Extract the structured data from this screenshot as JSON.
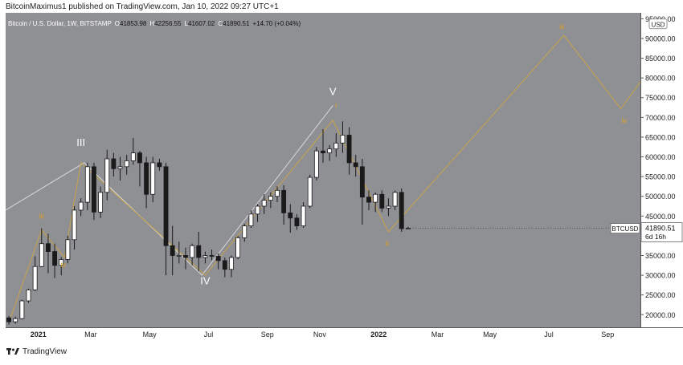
{
  "header": {
    "publish_line": "BitcoinMaximus1 published on TradingView.com, Jan 10, 2022 09:27 UTC+1"
  },
  "chart_data": {
    "type": "candlestick",
    "symbol_line": {
      "name": "Bitcoin / U.S. Dollar, 1W, BITSTAMP",
      "o_label": "O",
      "o": "41853.98",
      "h_label": "H",
      "h": "42256.55",
      "l_label": "L",
      "l": "41607.02",
      "c_label": "C",
      "c": "41890.51",
      "change": "+14.70 (+0.04%)"
    },
    "currency": "USD",
    "price_tag": {
      "symbol": "BTCUSD",
      "price": "41890.51",
      "countdown": "6d 16h"
    },
    "y_axis_ticks": [
      {
        "value": 20000,
        "label": "20000.00"
      },
      {
        "value": 25000,
        "label": "25000.00"
      },
      {
        "value": 30000,
        "label": "30000.00"
      },
      {
        "value": 35000,
        "label": "35000.00"
      },
      {
        "value": 40000,
        "label": "40000.00"
      },
      {
        "value": 45000,
        "label": "45000.00"
      },
      {
        "value": 50000,
        "label": "50000.00"
      },
      {
        "value": 55000,
        "label": "55000.00"
      },
      {
        "value": 60000,
        "label": "60000.00"
      },
      {
        "value": 65000,
        "label": "65000.00"
      },
      {
        "value": 70000,
        "label": "70000.00"
      },
      {
        "value": 75000,
        "label": "75000.00"
      },
      {
        "value": 80000,
        "label": "80000.00"
      },
      {
        "value": 85000,
        "label": "85000.00"
      },
      {
        "value": 90000,
        "label": "90000.00"
      },
      {
        "value": 95000,
        "label": "95000.00"
      }
    ],
    "x_axis_ticks": [
      {
        "week": 5,
        "label": "2021",
        "bold": true
      },
      {
        "week": 13,
        "label": "Mar",
        "bold": false
      },
      {
        "week": 22,
        "label": "May",
        "bold": false
      },
      {
        "week": 31,
        "label": "Jul",
        "bold": false
      },
      {
        "week": 40,
        "label": "Sep",
        "bold": false
      },
      {
        "week": 48,
        "label": "Nov",
        "bold": false
      },
      {
        "week": 57,
        "label": "2022",
        "bold": true
      },
      {
        "week": 66,
        "label": "Mar",
        "bold": false
      },
      {
        "week": 74,
        "label": "May",
        "bold": false
      },
      {
        "week": 83,
        "label": "Jul",
        "bold": false
      },
      {
        "week": 92,
        "label": "Sep",
        "bold": false
      }
    ],
    "ylim": [
      16800,
      96500
    ],
    "xlim": [
      0,
      97
    ],
    "candles": [
      {
        "o": 19200,
        "h": 19700,
        "l": 17500,
        "c": 18200
      },
      {
        "o": 18200,
        "h": 19500,
        "l": 17700,
        "c": 19000
      },
      {
        "o": 19000,
        "h": 23800,
        "l": 18800,
        "c": 23500
      },
      {
        "o": 23500,
        "h": 26600,
        "l": 23000,
        "c": 26300
      },
      {
        "o": 26300,
        "h": 34800,
        "l": 26000,
        "c": 32200
      },
      {
        "o": 32200,
        "h": 41900,
        "l": 32000,
        "c": 38000
      },
      {
        "o": 38000,
        "h": 40500,
        "l": 30500,
        "c": 36000
      },
      {
        "o": 36000,
        "h": 38000,
        "l": 29300,
        "c": 32500
      },
      {
        "o": 32500,
        "h": 34600,
        "l": 30000,
        "c": 34000
      },
      {
        "o": 34000,
        "h": 40000,
        "l": 33000,
        "c": 39000
      },
      {
        "o": 39000,
        "h": 47500,
        "l": 36500,
        "c": 46500
      },
      {
        "o": 46500,
        "h": 49500,
        "l": 45000,
        "c": 48500
      },
      {
        "o": 48500,
        "h": 58500,
        "l": 46500,
        "c": 57500
      },
      {
        "o": 57500,
        "h": 58500,
        "l": 44000,
        "c": 46000
      },
      {
        "o": 46000,
        "h": 52500,
        "l": 44500,
        "c": 51000
      },
      {
        "o": 51000,
        "h": 61800,
        "l": 49000,
        "c": 59500
      },
      {
        "o": 59500,
        "h": 61000,
        "l": 55000,
        "c": 57000
      },
      {
        "o": 57000,
        "h": 60000,
        "l": 54000,
        "c": 57500
      },
      {
        "o": 57500,
        "h": 60500,
        "l": 55500,
        "c": 59000
      },
      {
        "o": 59000,
        "h": 64800,
        "l": 58000,
        "c": 61000
      },
      {
        "o": 61000,
        "h": 61500,
        "l": 52500,
        "c": 58500
      },
      {
        "o": 58500,
        "h": 60000,
        "l": 47000,
        "c": 50500
      },
      {
        "o": 50500,
        "h": 60000,
        "l": 48500,
        "c": 58500
      },
      {
        "o": 58500,
        "h": 59500,
        "l": 56500,
        "c": 57500
      },
      {
        "o": 57500,
        "h": 58500,
        "l": 30000,
        "c": 37500
      },
      {
        "o": 37500,
        "h": 42500,
        "l": 30000,
        "c": 35000
      },
      {
        "o": 35000,
        "h": 38500,
        "l": 33000,
        "c": 35000
      },
      {
        "o": 35000,
        "h": 37000,
        "l": 31500,
        "c": 34500
      },
      {
        "o": 34500,
        "h": 38000,
        "l": 32500,
        "c": 37500
      },
      {
        "o": 37500,
        "h": 41000,
        "l": 31000,
        "c": 34500
      },
      {
        "o": 34500,
        "h": 36000,
        "l": 33000,
        "c": 35000
      },
      {
        "o": 35000,
        "h": 36500,
        "l": 33800,
        "c": 34800
      },
      {
        "o": 34800,
        "h": 35500,
        "l": 31500,
        "c": 33700
      },
      {
        "o": 33700,
        "h": 34500,
        "l": 29500,
        "c": 31500
      },
      {
        "o": 31500,
        "h": 35000,
        "l": 29500,
        "c": 34500
      },
      {
        "o": 34500,
        "h": 40000,
        "l": 34000,
        "c": 39500
      },
      {
        "o": 39500,
        "h": 43000,
        "l": 38500,
        "c": 42500
      },
      {
        "o": 42500,
        "h": 46500,
        "l": 42000,
        "c": 45500
      },
      {
        "o": 45500,
        "h": 48000,
        "l": 43500,
        "c": 47500
      },
      {
        "o": 47500,
        "h": 50500,
        "l": 45500,
        "c": 49000
      },
      {
        "o": 49000,
        "h": 51000,
        "l": 47000,
        "c": 50000
      },
      {
        "o": 50000,
        "h": 52500,
        "l": 48500,
        "c": 51500
      },
      {
        "o": 51500,
        "h": 52800,
        "l": 42800,
        "c": 45800
      },
      {
        "o": 45800,
        "h": 48000,
        "l": 40800,
        "c": 44500
      },
      {
        "o": 44500,
        "h": 45500,
        "l": 41500,
        "c": 42500
      },
      {
        "o": 42500,
        "h": 48500,
        "l": 42000,
        "c": 47500
      },
      {
        "o": 47500,
        "h": 55500,
        "l": 47000,
        "c": 54800
      },
      {
        "o": 54800,
        "h": 62500,
        "l": 54000,
        "c": 61500
      },
      {
        "o": 61500,
        "h": 67000,
        "l": 58500,
        "c": 61000
      },
      {
        "o": 61000,
        "h": 63000,
        "l": 59000,
        "c": 62000
      },
      {
        "o": 62000,
        "h": 66000,
        "l": 60000,
        "c": 63500
      },
      {
        "o": 63500,
        "h": 69000,
        "l": 61000,
        "c": 65500
      },
      {
        "o": 65500,
        "h": 67500,
        "l": 55500,
        "c": 58500
      },
      {
        "o": 58500,
        "h": 60500,
        "l": 55000,
        "c": 57500
      },
      {
        "o": 57500,
        "h": 59500,
        "l": 42800,
        "c": 49800
      },
      {
        "o": 49800,
        "h": 51500,
        "l": 46500,
        "c": 48500
      },
      {
        "o": 48500,
        "h": 51000,
        "l": 46000,
        "c": 50500
      },
      {
        "o": 50500,
        "h": 51500,
        "l": 46000,
        "c": 47000
      },
      {
        "o": 47000,
        "h": 49500,
        "l": 45000,
        "c": 47500
      },
      {
        "o": 47500,
        "h": 51500,
        "l": 46500,
        "c": 51000
      },
      {
        "o": 51000,
        "h": 52000,
        "l": 41000,
        "c": 41800
      },
      {
        "o": 41854,
        "h": 42257,
        "l": 41607,
        "c": 41890
      }
    ],
    "candle_start_week": 0.5,
    "wave_labels_white": [
      {
        "week": 11.5,
        "value": 62700,
        "label": "III"
      },
      {
        "week": 30.5,
        "value": 27700,
        "label": "IV"
      },
      {
        "week": 50.0,
        "value": 75700,
        "label": "V"
      }
    ],
    "wave_labels_orange": [
      {
        "week": 5.5,
        "value": 44400,
        "label": "iii"
      },
      {
        "week": 8.8,
        "value": 32000,
        "label": "iv"
      },
      {
        "week": 50.5,
        "value": 72500,
        "label": "i"
      },
      {
        "week": 58.3,
        "value": 37400,
        "label": "ii"
      },
      {
        "week": 85.0,
        "value": 92300,
        "label": "iii"
      },
      {
        "week": 94.5,
        "value": 68500,
        "label": "iv"
      }
    ],
    "white_wave_path": [
      {
        "week": 0.0,
        "value": 46500
      },
      {
        "week": 12.0,
        "value": 58500
      },
      {
        "week": 30.0,
        "value": 30000
      },
      {
        "week": 50.0,
        "value": 73000
      }
    ],
    "orange_wave_path": [
      {
        "week": 0.5,
        "value": 18000
      },
      {
        "week": 5.5,
        "value": 41500
      },
      {
        "week": 9.0,
        "value": 34500
      },
      {
        "week": 11.5,
        "value": 58500
      },
      {
        "week": 30.5,
        "value": 30000
      },
      {
        "week": 50.0,
        "value": 69300
      },
      {
        "week": 58.5,
        "value": 41000
      },
      {
        "week": 85.3,
        "value": 90800
      },
      {
        "week": 94.0,
        "value": 72200
      },
      {
        "week": 97.0,
        "value": 79000
      }
    ],
    "colors": {
      "background": "#8f9094",
      "up": "#ffffff",
      "down": "#1a1a1a",
      "wick": "#1a1a1a",
      "white_wave": "#d9d9d9",
      "orange_wave": "#c9a24a",
      "orange_label": "#e0a020",
      "price_line": "#3a3a3a"
    }
  },
  "footer": {
    "logo_text": "TradingView"
  }
}
